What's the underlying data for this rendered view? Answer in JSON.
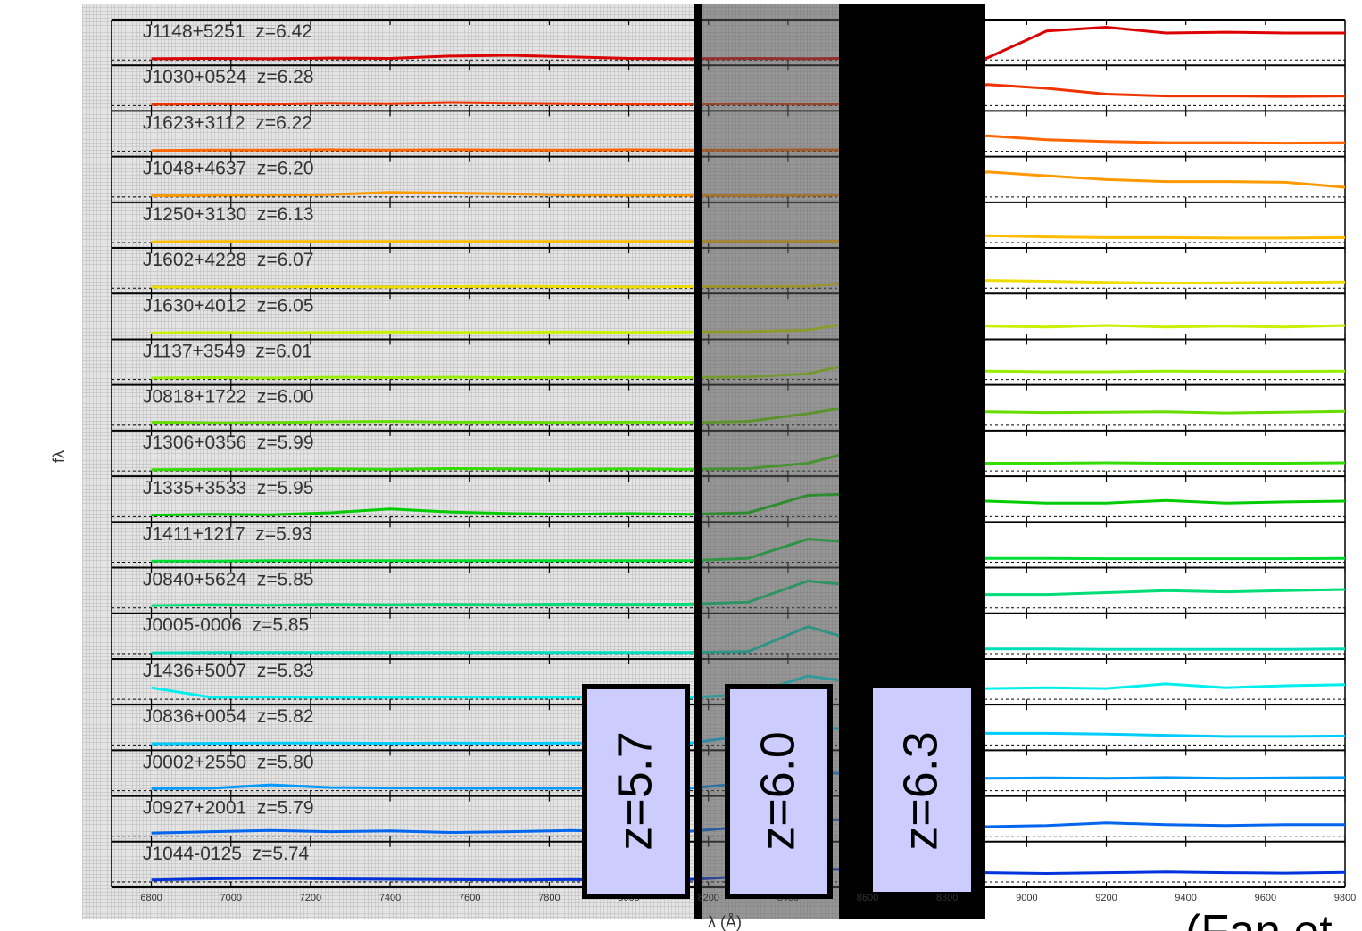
{
  "chart_data": {
    "type": "line",
    "xlabel": "λ (Å)",
    "ylabel": "fλ",
    "x": [
      6800,
      6950,
      7100,
      7250,
      7400,
      7550,
      7700,
      7850,
      8000,
      8150,
      8300,
      8450,
      8600,
      8750,
      8900,
      9050,
      9200,
      9350,
      9500,
      9650,
      9800
    ],
    "xlim": [
      6700,
      9800
    ],
    "xticks": [
      6800,
      7000,
      7200,
      7400,
      7600,
      7800,
      8000,
      8200,
      8400,
      8600,
      8800,
      9000,
      9200,
      9400,
      9600,
      9800
    ],
    "ylim": [
      0,
      1
    ],
    "series": [
      {
        "name": "J1148+5251  z=6.42",
        "color": "#dd0000",
        "values": [
          0.03,
          0.04,
          0.03,
          0.05,
          0.04,
          0.1,
          0.12,
          0.08,
          0.04,
          0.03,
          0.04,
          0.03,
          0.05,
          0.04,
          0.05,
          0.75,
          0.85,
          0.7,
          0.72,
          0.7,
          0.7
        ]
      },
      {
        "name": "J1030+0524  z=6.28",
        "color": "#ee3300",
        "values": [
          0.03,
          0.05,
          0.04,
          0.06,
          0.05,
          0.08,
          0.06,
          0.05,
          0.04,
          0.04,
          0.05,
          0.04,
          0.04,
          0.05,
          0.55,
          0.45,
          0.3,
          0.25,
          0.25,
          0.24,
          0.25
        ]
      },
      {
        "name": "J1623+3112  z=6.22",
        "color": "#ff6600",
        "values": [
          0.02,
          0.03,
          0.03,
          0.04,
          0.03,
          0.04,
          0.03,
          0.03,
          0.04,
          0.03,
          0.03,
          0.04,
          0.03,
          0.03,
          0.4,
          0.3,
          0.25,
          0.22,
          0.22,
          0.21,
          0.22
        ]
      },
      {
        "name": "J1048+4637  z=6.20",
        "color": "#ff9900",
        "values": [
          0.03,
          0.04,
          0.05,
          0.06,
          0.12,
          0.1,
          0.08,
          0.05,
          0.04,
          0.04,
          0.03,
          0.04,
          0.05,
          0.04,
          0.65,
          0.55,
          0.45,
          0.4,
          0.4,
          0.38,
          0.25
        ]
      },
      {
        "name": "J1250+3130  z=6.13",
        "color": "#ffbb00",
        "values": [
          0.02,
          0.03,
          0.03,
          0.03,
          0.03,
          0.03,
          0.03,
          0.03,
          0.03,
          0.03,
          0.03,
          0.03,
          0.04,
          0.25,
          0.18,
          0.15,
          0.13,
          0.13,
          0.12,
          0.12,
          0.13
        ]
      },
      {
        "name": "J1602+4228  z=6.07",
        "color": "#eedd00",
        "values": [
          0.03,
          0.03,
          0.03,
          0.04,
          0.03,
          0.04,
          0.05,
          0.04,
          0.03,
          0.04,
          0.04,
          0.05,
          0.18,
          0.2,
          0.2,
          0.18,
          0.15,
          0.13,
          0.14,
          0.15,
          0.16
        ]
      },
      {
        "name": "J1630+4012  z=6.05",
        "color": "#ccee00",
        "values": [
          0.03,
          0.04,
          0.03,
          0.04,
          0.05,
          0.04,
          0.04,
          0.05,
          0.04,
          0.05,
          0.06,
          0.1,
          0.35,
          0.2,
          0.2,
          0.18,
          0.22,
          0.18,
          0.2,
          0.18,
          0.22
        ]
      },
      {
        "name": "J1137+3549  z=6.01",
        "color": "#99ee00",
        "values": [
          0.04,
          0.05,
          0.04,
          0.06,
          0.05,
          0.06,
          0.05,
          0.05,
          0.06,
          0.05,
          0.07,
          0.15,
          0.5,
          0.22,
          0.22,
          0.2,
          0.2,
          0.22,
          0.21,
          0.21,
          0.22
        ]
      },
      {
        "name": "J0818+1722  z=6.00",
        "color": "#66dd00",
        "values": [
          0.08,
          0.06,
          0.07,
          0.09,
          0.1,
          0.08,
          0.08,
          0.07,
          0.08,
          0.07,
          0.1,
          0.3,
          0.55,
          0.4,
          0.35,
          0.33,
          0.34,
          0.35,
          0.32,
          0.34,
          0.36
        ]
      },
      {
        "name": "J1306+0356  z=5.99",
        "color": "#33dd00",
        "values": [
          0.03,
          0.04,
          0.04,
          0.05,
          0.04,
          0.06,
          0.05,
          0.04,
          0.05,
          0.04,
          0.06,
          0.2,
          0.6,
          0.2,
          0.2,
          0.2,
          0.21,
          0.2,
          0.2,
          0.2,
          0.21
        ]
      },
      {
        "name": "J1335+3533  z=5.95",
        "color": "#00cc00",
        "values": [
          0.04,
          0.06,
          0.05,
          0.1,
          0.2,
          0.12,
          0.08,
          0.06,
          0.08,
          0.06,
          0.1,
          0.55,
          0.6,
          0.4,
          0.4,
          0.35,
          0.35,
          0.42,
          0.35,
          0.38,
          0.4
        ]
      },
      {
        "name": "J1411+1217  z=5.93",
        "color": "#00dd33",
        "values": [
          0.03,
          0.03,
          0.04,
          0.04,
          0.04,
          0.04,
          0.04,
          0.04,
          0.04,
          0.04,
          0.1,
          0.6,
          0.5,
          0.1,
          0.1,
          0.1,
          0.09,
          0.09,
          0.09,
          0.09,
          0.1
        ]
      },
      {
        "name": "J0840+5624  z=5.85",
        "color": "#00dd77",
        "values": [
          0.06,
          0.08,
          0.07,
          0.09,
          0.08,
          0.09,
          0.08,
          0.1,
          0.09,
          0.1,
          0.15,
          0.7,
          0.55,
          0.4,
          0.35,
          0.35,
          0.4,
          0.45,
          0.42,
          0.45,
          0.48
        ]
      },
      {
        "name": "J0005-0006  z=5.85",
        "color": "#00ddbb",
        "values": [
          0.02,
          0.03,
          0.03,
          0.03,
          0.03,
          0.03,
          0.03,
          0.03,
          0.03,
          0.03,
          0.05,
          0.7,
          0.25,
          0.15,
          0.12,
          0.12,
          0.11,
          0.11,
          0.11,
          0.11,
          0.12
        ]
      },
      {
        "name": "J1436+5007  z=5.83",
        "color": "#00eeee",
        "values": [
          0.3,
          0.05,
          0.06,
          0.05,
          0.05,
          0.06,
          0.05,
          0.05,
          0.06,
          0.05,
          0.12,
          0.6,
          0.4,
          0.3,
          0.28,
          0.3,
          0.28,
          0.4,
          0.3,
          0.35,
          0.38
        ]
      },
      {
        "name": "J0836+0054  z=5.82",
        "color": "#00ccff",
        "values": [
          0.03,
          0.04,
          0.05,
          0.05,
          0.04,
          0.05,
          0.04,
          0.05,
          0.05,
          0.04,
          0.25,
          0.45,
          0.4,
          0.35,
          0.3,
          0.3,
          0.28,
          0.25,
          0.22,
          0.22,
          0.23
        ]
      },
      {
        "name": "J0002+2550  z=5.80",
        "color": "#0099ff",
        "values": [
          0.05,
          0.06,
          0.15,
          0.08,
          0.07,
          0.06,
          0.06,
          0.06,
          0.07,
          0.06,
          0.2,
          0.5,
          0.4,
          0.35,
          0.32,
          0.33,
          0.32,
          0.34,
          0.32,
          0.33,
          0.34
        ]
      },
      {
        "name": "J0927+2001  z=5.79",
        "color": "#0066ee",
        "values": [
          0.08,
          0.12,
          0.15,
          0.12,
          0.14,
          0.1,
          0.12,
          0.15,
          0.12,
          0.13,
          0.25,
          0.45,
          0.4,
          0.3,
          0.25,
          0.28,
          0.35,
          0.3,
          0.28,
          0.3,
          0.3
        ]
      },
      {
        "name": "J1044-0125  z=5.74",
        "color": "#0033dd",
        "values": [
          0.05,
          0.08,
          0.1,
          0.08,
          0.07,
          0.06,
          0.05,
          0.06,
          0.05,
          0.06,
          0.15,
          0.35,
          0.3,
          0.25,
          0.24,
          0.22,
          0.24,
          0.26,
          0.24,
          0.23,
          0.25
        ]
      }
    ],
    "annotations": [
      "z=5.7",
      "z=6.0",
      "z=6.3"
    ],
    "citation": "(Fan et"
  }
}
